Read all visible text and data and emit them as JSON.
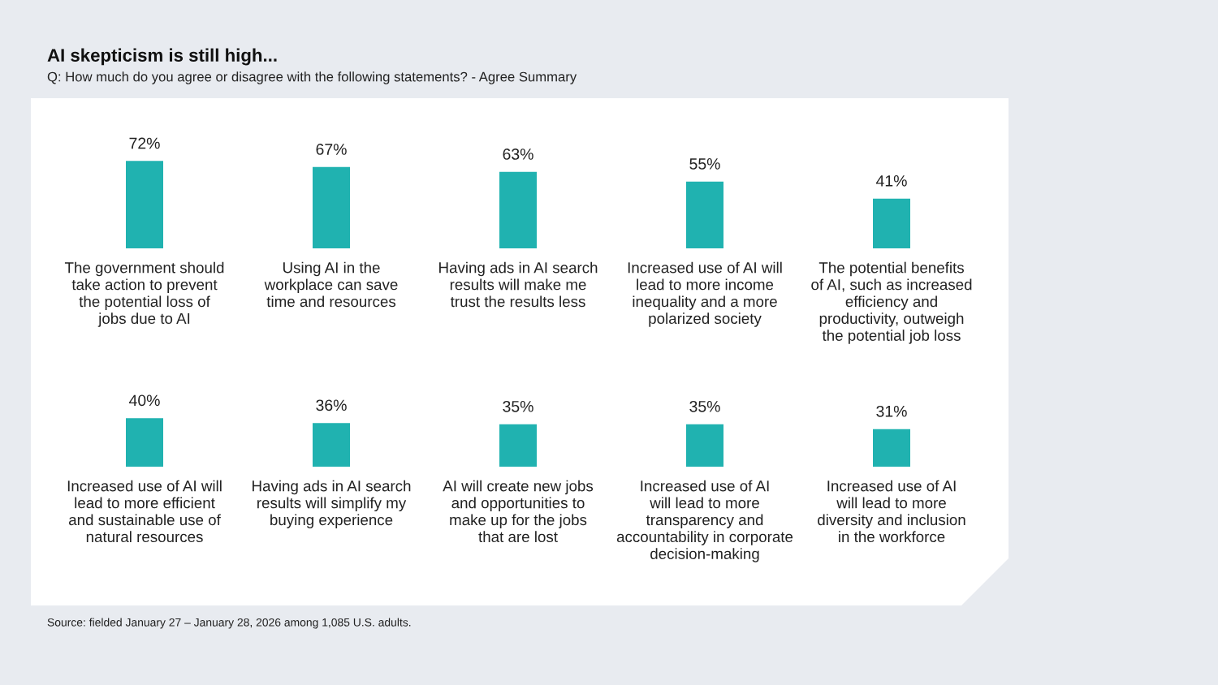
{
  "chart_data": [
    {
      "type": "bar",
      "title": "AI skepticism is still high...",
      "subtitle": "Q: How much do you agree or disagree with the following statements? - Agree Summary",
      "categories": [
        "The government should\ntake action to prevent\nthe potential loss of\njobs due to AI",
        "Using AI in the\nworkplace can save\ntime and resources",
        "Having ads in AI search\nresults will make me\ntrust the results less",
        "Increased use of AI will\nlead to more income\ninequality and a more\npolarized society",
        "The potential benefits\nof AI, such as increased\nefficiency and\nproductivity, outweigh\nthe potential job loss"
      ],
      "values": [
        72,
        67,
        63,
        55,
        41
      ],
      "value_labels": [
        "72%",
        "67%",
        "63%",
        "55%",
        "41%"
      ],
      "color": "#20b2b0",
      "grid": false,
      "legend": false
    },
    {
      "type": "bar",
      "categories": [
        "Increased use of AI will\nlead to more efficient\nand sustainable use of\nnatural resources",
        "Having ads in AI search\nresults will simplify my\nbuying experience",
        "AI will create new jobs\nand opportunities to\nmake up for the jobs\nthat are lost",
        "Increased use of AI\nwill lead to more\ntransparency and\naccountability in corporate\ndecision-making",
        "Increased use of AI\nwill lead to more\ndiversity and inclusion\nin the workforce"
      ],
      "values": [
        40,
        36,
        35,
        35,
        31
      ],
      "value_labels": [
        "40%",
        "36%",
        "35%",
        "35%",
        "31%"
      ],
      "color": "#20b2b0",
      "grid": false,
      "legend": false,
      "annotations": [
        "Source: fielded January 27 – January 28, 2026 among 1,085 U.S. adults."
      ]
    }
  ]
}
